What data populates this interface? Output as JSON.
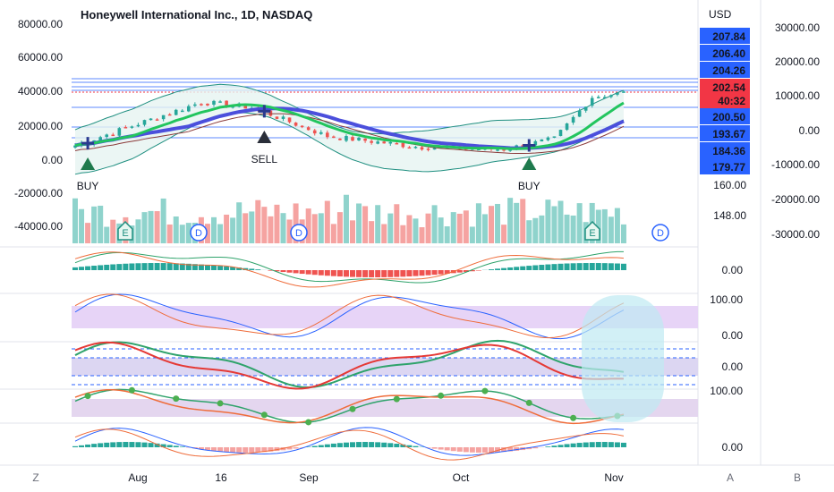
{
  "header": {
    "title": "Honeywell International Inc., 1D, NASDAQ",
    "currency": "USD"
  },
  "chart_data": {
    "type": "candlestick",
    "title": "Honeywell International Inc., 1D, NASDAQ",
    "left_axis_ticks": [
      "80000.00",
      "60000.00",
      "40000.00",
      "20000.00",
      "0.00",
      "-20000.00",
      "-40000.00"
    ],
    "right_axis_ticks": [
      "30000.00",
      "20000.00",
      "10000.00",
      "0.00",
      "-10000.00",
      "-20000.00",
      "-30000.00"
    ],
    "price_ticks": [
      "160.00",
      "148.00"
    ],
    "price_labels": [
      {
        "text": "207.84",
        "color": "#2962ff"
      },
      {
        "text": "206.40",
        "color": "#2962ff"
      },
      {
        "text": "204.26",
        "color": "#2962ff"
      },
      {
        "text": "202.54",
        "color": "#f23645"
      },
      {
        "text": "40:32",
        "color": "#f23645"
      },
      {
        "text": "200.50",
        "color": "#2962ff"
      },
      {
        "text": "193.67",
        "color": "#2962ff"
      },
      {
        "text": "184.36",
        "color": "#2962ff"
      },
      {
        "text": "179.77",
        "color": "#2962ff"
      }
    ],
    "x_labels": [
      "Aug",
      "16",
      "Sep",
      "Oct",
      "Nov"
    ],
    "signals": [
      {
        "label": "BUY",
        "type": "buy"
      },
      {
        "label": "SELL",
        "type": "sell"
      },
      {
        "label": "BUY",
        "type": "buy"
      }
    ],
    "event_markers": [
      "E",
      "D",
      "D",
      "E",
      "D"
    ],
    "pane_ticks": {
      "macd1": [
        "0.00"
      ],
      "stoch": [
        "100.00",
        "0.00"
      ],
      "osc": [
        "0.00"
      ],
      "rsi": [
        "100.00"
      ],
      "macd2": [
        "0.00"
      ]
    },
    "price_start": 182.5,
    "price_end": 202.54,
    "colors": {
      "up": "#26a69a",
      "down": "#ef5350",
      "volume_up": "#8fd3cc",
      "volume_down": "#f5a3a1",
      "fast_ma": "#22c55e",
      "slow_ma": "#4b4fdc",
      "bands": "#1f8f80"
    }
  },
  "bottom_bar": {
    "left": "Z",
    "right_a": "A",
    "right_b": "B"
  }
}
